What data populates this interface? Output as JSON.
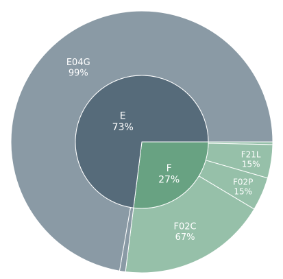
{
  "chart_data": {
    "type": "sunburst",
    "start_angle_deg": 0,
    "direction": "clockwise",
    "colors": {
      "E_inner": "#566b7a",
      "E_outer": "#8a9aa5",
      "F_inner": "#68a282",
      "F_outer": "#96c0a9",
      "border": "#ffffff",
      "label": "#ffffff"
    },
    "inner": [
      {
        "id": "E",
        "label": "E",
        "pct_label": "73%",
        "value": 73
      },
      {
        "id": "F",
        "label": "F",
        "pct_label": "27%",
        "value": 27
      }
    ],
    "outer": [
      {
        "parent": "F",
        "label": "",
        "pct_label": "",
        "value": 1.2,
        "color_key": "F_outer"
      },
      {
        "parent": "F",
        "label": "F21L",
        "pct_label": "15%",
        "value": 15,
        "color_key": "F_outer"
      },
      {
        "parent": "F",
        "label": "F02P",
        "pct_label": "15%",
        "value": 15,
        "color_key": "F_outer"
      },
      {
        "parent": "F",
        "label": "F02C",
        "pct_label": "67%",
        "value": 67,
        "color_key": "F_outer"
      },
      {
        "parent": "E",
        "label": "",
        "pct_label": "",
        "value": 1,
        "color_key": "E_outer"
      },
      {
        "parent": "E",
        "label": "E04G",
        "pct_label": "99%",
        "value": 99,
        "color_key": "E_outer"
      }
    ]
  }
}
